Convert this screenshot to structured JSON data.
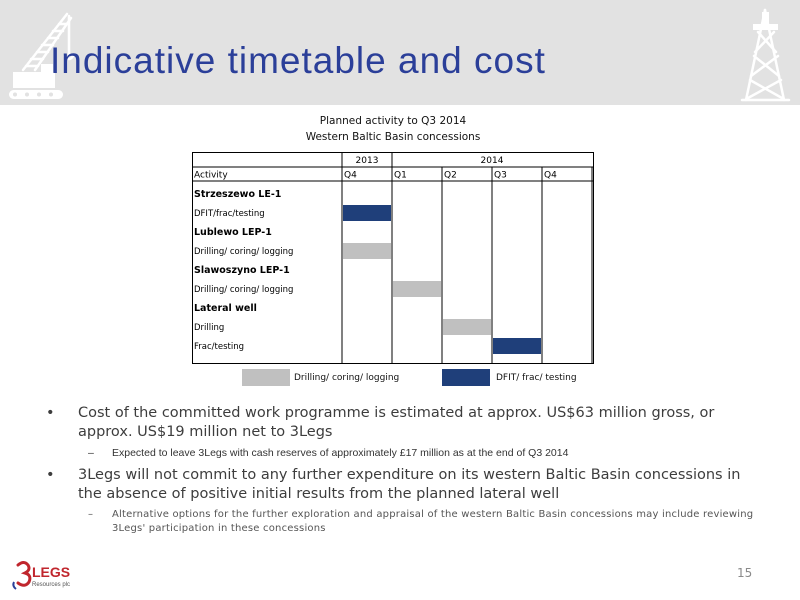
{
  "slide": {
    "title": "Indicative timetable and cost",
    "page_number": "15"
  },
  "chart": {
    "title_line1": "Planned activity to Q3 2014",
    "title_line2": "Western Baltic Basin concessions"
  },
  "chart_data": {
    "type": "table",
    "years": [
      {
        "label": "2013",
        "span": 1
      },
      {
        "label": "2014",
        "span": 4
      }
    ],
    "header": {
      "activity": "Activity",
      "quarters": [
        "Q4",
        "Q1",
        "Q2",
        "Q3",
        "Q4"
      ]
    },
    "rows": [
      {
        "label": "Strzeszewo LE-1",
        "bold": true,
        "bar": null
      },
      {
        "label": "DFIT/frac/testing",
        "bold": false,
        "bar": {
          "col": 0,
          "kind": "dfit"
        }
      },
      {
        "label": "Lublewo LEP-1",
        "bold": true,
        "bar": null
      },
      {
        "label": "Drilling/ coring/ logging",
        "bold": false,
        "bar": {
          "col": 0,
          "kind": "drilling"
        }
      },
      {
        "label": "Slawoszyno LEP-1",
        "bold": true,
        "bar": null
      },
      {
        "label": "Drilling/ coring/ logging",
        "bold": false,
        "bar": {
          "col": 1,
          "kind": "drilling"
        }
      },
      {
        "label": "Lateral well",
        "bold": true,
        "bar": null
      },
      {
        "label": "Drilling",
        "bold": false,
        "bar": {
          "col": 2,
          "kind": "drilling"
        }
      },
      {
        "label": "Frac/testing",
        "bold": false,
        "bar": {
          "col": 3,
          "kind": "dfit"
        }
      }
    ],
    "legend": [
      {
        "kind": "drilling",
        "label": "Drilling/ coring/ logging",
        "color": "#c0c0c0"
      },
      {
        "kind": "dfit",
        "label": "DFIT/ frac/ testing",
        "color": "#1f3f7a"
      }
    ],
    "colors": {
      "drilling": "#c0c0c0",
      "dfit": "#1f3f7a"
    }
  },
  "bullets": [
    {
      "text": "Cost of the committed work programme is estimated at approx. US$63 million gross, or approx. US$19 million net to 3Legs",
      "sub": "Expected to leave 3Legs with cash reserves of approximately £17 million as at the end of Q3 2014"
    },
    {
      "text": "3Legs will not commit to any further expenditure on its western Baltic Basin concessions in the absence of positive initial results from the planned lateral well",
      "sub": "Alternative options for the further exploration and appraisal of the western Baltic Basin concessions may include reviewing 3Legs' participation in these concessions"
    }
  ],
  "logo": {
    "name": "LEGS",
    "tagline": "Resources plc"
  },
  "icons": {
    "left": "crane-icon",
    "right": "oil-rig-icon"
  }
}
